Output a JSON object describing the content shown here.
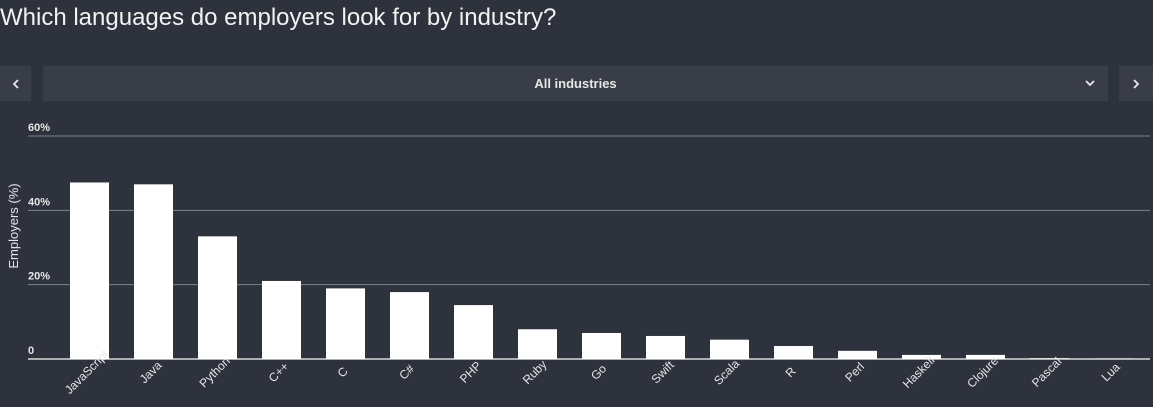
{
  "page": {
    "title": "Which languages do employers look for by industry?"
  },
  "selector": {
    "value": "All industries",
    "prev_icon": "chevron-left-icon",
    "next_icon": "chevron-right-icon",
    "dropdown_icon": "chevron-down-icon"
  },
  "colors": {
    "background": "#2d323c",
    "bar": "#ffffff",
    "grid": "#7c828c",
    "text": "#e6e6e6"
  },
  "chart_data": {
    "type": "bar",
    "ylabel": "Employers (%)",
    "ylim": [
      0,
      60
    ],
    "yticks": [
      0,
      20,
      40,
      60
    ],
    "ytick_labels": [
      "0",
      "20%",
      "40%",
      "60%"
    ],
    "grid": true,
    "categories": [
      "JavaScript",
      "Java",
      "Python",
      "C++",
      "C",
      "C#",
      "PHP",
      "Ruby",
      "Go",
      "Swift",
      "Scala",
      "R",
      "Perl",
      "Haskell",
      "Clojure",
      "Pascal",
      "Lua"
    ],
    "values": [
      47.5,
      47,
      33,
      21,
      19,
      18,
      14.5,
      8,
      7,
      6.2,
      5.2,
      3.5,
      2.2,
      1.1,
      1.1,
      0.2,
      0.1
    ]
  }
}
